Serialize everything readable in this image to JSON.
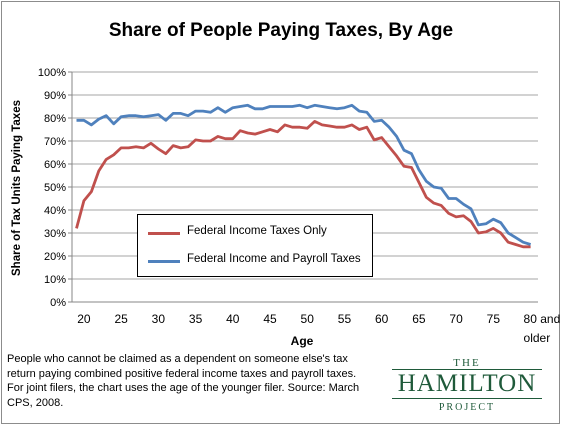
{
  "chart_data": {
    "type": "line",
    "title": "Share of People Paying Taxes, By Age",
    "xlabel": "Age",
    "ylabel": "Share of Tax Units Paying Taxes",
    "ylim": [
      0,
      100
    ],
    "yticks": [
      "0%",
      "10%",
      "20%",
      "30%",
      "40%",
      "50%",
      "60%",
      "70%",
      "80%",
      "90%",
      "100%"
    ],
    "xticks": [
      "20",
      "25",
      "30",
      "35",
      "40",
      "45",
      "50",
      "55",
      "60",
      "65",
      "70",
      "75",
      "80 and older"
    ],
    "x": [
      19,
      20,
      21,
      22,
      23,
      24,
      25,
      26,
      27,
      28,
      29,
      30,
      31,
      32,
      33,
      34,
      35,
      36,
      37,
      38,
      39,
      40,
      41,
      42,
      43,
      44,
      45,
      46,
      47,
      48,
      49,
      50,
      51,
      52,
      53,
      54,
      55,
      56,
      57,
      58,
      59,
      60,
      61,
      62,
      63,
      64,
      65,
      66,
      67,
      68,
      69,
      70,
      71,
      72,
      73,
      74,
      75,
      76,
      77,
      78,
      79,
      80
    ],
    "series": [
      {
        "name": "Federal Income Taxes Only",
        "color": "#c0504d",
        "values": [
          32,
          44,
          48,
          57,
          62,
          64,
          67,
          67,
          67.5,
          67,
          69,
          66.5,
          64.5,
          68,
          67,
          67.5,
          70.5,
          70,
          70,
          72,
          71,
          71,
          74.5,
          73.5,
          73,
          74,
          75,
          74,
          77,
          76,
          76,
          75.5,
          78.5,
          77,
          76.5,
          76,
          76,
          77,
          75,
          76,
          70.5,
          71.5,
          67.5,
          63.5,
          59,
          58.5,
          52,
          45.5,
          43,
          42,
          38.5,
          37,
          37.5,
          35,
          30,
          30.5,
          32,
          30,
          26,
          25,
          24,
          24
        ]
      },
      {
        "name": "Federal Income and Payroll Taxes",
        "color": "#4f81bd",
        "values": [
          79,
          79,
          77,
          79.5,
          81,
          77.5,
          80.5,
          81,
          81,
          80.5,
          81,
          81.5,
          79,
          82,
          82,
          81,
          83,
          83,
          82.5,
          84.5,
          82.5,
          84.5,
          85,
          85.5,
          84,
          84,
          85,
          85,
          85,
          85,
          85.5,
          84.5,
          85.5,
          85,
          84.5,
          84,
          84.5,
          85.5,
          83,
          82.5,
          78.5,
          79,
          76,
          72,
          66,
          64.5,
          57.5,
          52.5,
          50,
          49.5,
          45,
          45,
          42.5,
          40.5,
          33.5,
          34,
          36,
          34.5,
          30,
          28,
          26,
          25
        ]
      }
    ],
    "grid": "horizontal",
    "legend": "center-left"
  },
  "footnote": "People who cannot be claimed as a dependent on someone else's tax return paying combined positive federal income taxes and payroll taxes. For joint filers, the chart uses the age of the younger filer. Source: March CPS, 2008.",
  "logo": {
    "the": "THE",
    "name": "HAMILTON",
    "project": "PROJECT"
  }
}
